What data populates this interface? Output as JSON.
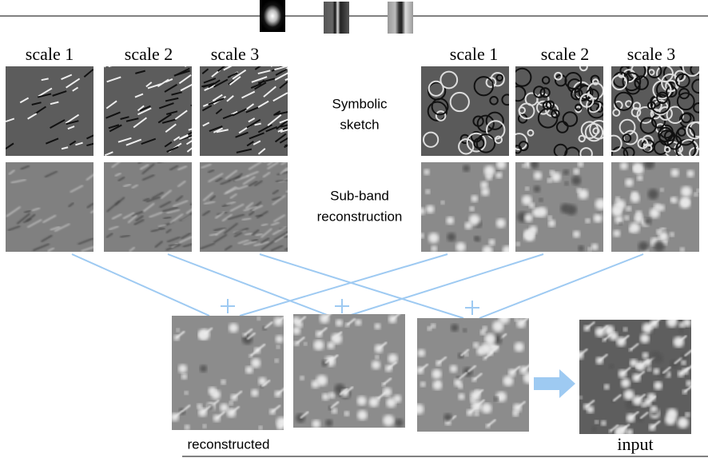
{
  "left": {
    "scale_labels": [
      "scale 1",
      "scale 2",
      "scale 3"
    ]
  },
  "right": {
    "scale_labels": [
      "scale 1",
      "scale 2",
      "scale 3"
    ]
  },
  "row_labels": {
    "sketch": [
      "Symbolic",
      "sketch"
    ],
    "subband": [
      "Sub-band",
      "reconstruction"
    ]
  },
  "outputs": {
    "reconstructed": "reconstructed",
    "input": "input"
  }
}
